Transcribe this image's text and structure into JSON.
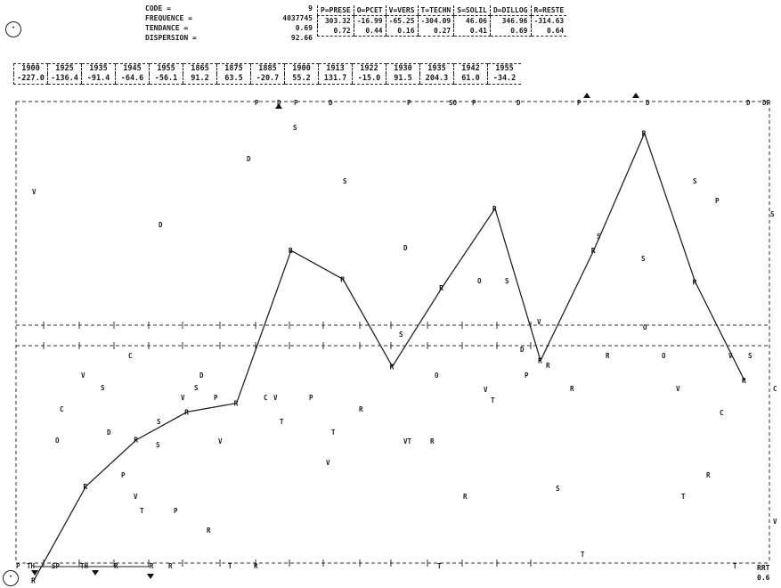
{
  "header": {
    "stats": [
      {
        "label": "CODE =",
        "value": "9"
      },
      {
        "label": "FREQUENCE =",
        "value": "4037745"
      },
      {
        "label": "TENDANCE =",
        "value": "0.69"
      },
      {
        "label": "DISPERSION =",
        "value": "92.66"
      }
    ]
  },
  "categories": {
    "headers": [
      "P=PRESE",
      "O=PCET",
      "V=VERS",
      "T=TECHN",
      "S=SOLIL",
      "D=DILLOG",
      "R=RESTE"
    ],
    "rows": [
      [
        "303.32",
        "-16.99",
        "-65.25",
        "-304.09",
        "46.06",
        "346.96",
        "-314.63"
      ],
      [
        "0.72",
        "0.44",
        "0.16",
        "0.27",
        "0.41",
        "0.69",
        "0.64"
      ]
    ]
  },
  "year_table": {
    "years": [
      "1900",
      "1925",
      "1935",
      "1945",
      "1955",
      "1865",
      "1875",
      "1885",
      "1900",
      "1913",
      "1922",
      "1930",
      "1935",
      "1942",
      "1955"
    ],
    "values": [
      "-227.0",
      "-136.4",
      "-91.4",
      "-64.6",
      "-56.1",
      "91.2",
      "63.5",
      "-20.7",
      "55.2",
      "131.7",
      "-15.0",
      "91.5",
      "204.3",
      "61.0",
      "-34.2"
    ]
  },
  "right_labels": {
    "bottom_code": "RRT",
    "bottom_value": "0.6"
  },
  "chart_data": {
    "type": "line",
    "title": "",
    "xlabel": "",
    "ylabel": "",
    "categories": [
      "1900",
      "1925",
      "1935",
      "1945",
      "1955",
      "1865",
      "1875",
      "1885",
      "1900",
      "1913",
      "1922",
      "1930",
      "1935",
      "1942",
      "1955"
    ],
    "series": [
      {
        "name": "R=RESTE",
        "values": [
          -227.0,
          -136.4,
          -91.4,
          -64.6,
          -56.1,
          91.2,
          63.5,
          -20.7,
          55.2,
          131.7,
          -15.0,
          91.5,
          204.3,
          61.0,
          -34.2
        ]
      }
    ],
    "grid": true
  }
}
